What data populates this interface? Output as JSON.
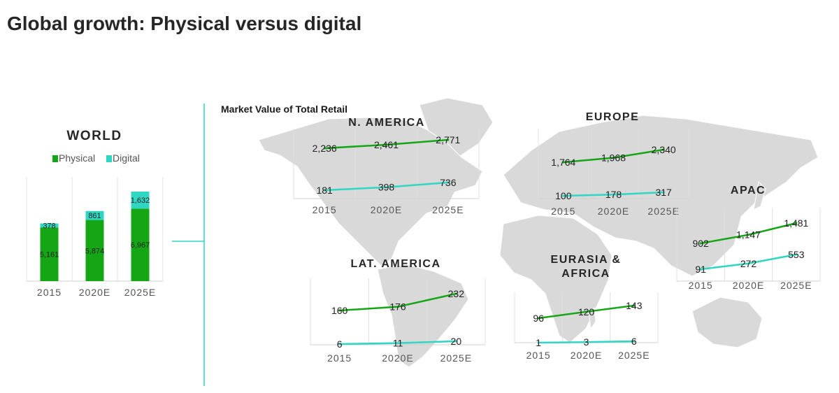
{
  "page": {
    "title": "Global growth: Physical versus digital"
  },
  "subtitle": "Market Value of Total Retail",
  "colors": {
    "physical": "#14a614",
    "digital": "#2fd6c2",
    "divider": "#2fd6c2",
    "map": "#d9d9d9"
  },
  "chart_data": [
    {
      "type": "bar",
      "title": "WORLD",
      "stacked": true,
      "categories": [
        "2015",
        "2020E",
        "2025E"
      ],
      "series": [
        {
          "name": "Physical",
          "values": [
            5161,
            5874,
            6967
          ],
          "labels": [
            "5,161",
            "5,874",
            "6,967"
          ]
        },
        {
          "name": "Digital",
          "values": [
            378,
            861,
            1632
          ],
          "labels": [
            "378",
            "861",
            "1,632"
          ]
        }
      ],
      "legend": "top"
    },
    {
      "type": "line",
      "title": "N. AMERICA",
      "categories": [
        "2015",
        "2020E",
        "2025E"
      ],
      "series": [
        {
          "values": [
            2236,
            2461,
            2771
          ],
          "labels": [
            "2,236",
            "2,461",
            "2,771"
          ]
        },
        {
          "values": [
            181,
            398,
            736
          ],
          "labels": [
            "181",
            "398",
            "736"
          ]
        }
      ]
    },
    {
      "type": "line",
      "title": "EUROPE",
      "categories": [
        "2015",
        "2020E",
        "2025E"
      ],
      "series": [
        {
          "values": [
            1764,
            1968,
            2340
          ],
          "labels": [
            "1,764",
            "1,968",
            "2,340"
          ]
        },
        {
          "values": [
            100,
            178,
            317
          ],
          "labels": [
            "100",
            "178",
            "317"
          ]
        }
      ]
    },
    {
      "type": "line",
      "title": "APAC",
      "categories": [
        "2015",
        "2020E",
        "2025E"
      ],
      "series": [
        {
          "values": [
            902,
            1147,
            1481
          ],
          "labels": [
            "902",
            "1,147",
            "1,481"
          ]
        },
        {
          "values": [
            91,
            272,
            553
          ],
          "labels": [
            "91",
            "272",
            "553"
          ]
        }
      ]
    },
    {
      "type": "line",
      "title": "LAT. AMERICA",
      "categories": [
        "2015",
        "2020E",
        "2025E"
      ],
      "series": [
        {
          "values": [
            160,
            176,
            232
          ],
          "labels": [
            "160",
            "176",
            "232"
          ]
        },
        {
          "values": [
            6,
            11,
            20
          ],
          "labels": [
            "6",
            "11",
            "20"
          ]
        }
      ]
    },
    {
      "type": "line",
      "title": "EURASIA & AFRICA",
      "categories": [
        "2015",
        "2020E",
        "2025E"
      ],
      "series": [
        {
          "values": [
            96,
            120,
            143
          ],
          "labels": [
            "96",
            "120",
            "143"
          ]
        },
        {
          "values": [
            1,
            3,
            6
          ],
          "labels": [
            "1",
            "3",
            "6"
          ]
        }
      ]
    }
  ]
}
